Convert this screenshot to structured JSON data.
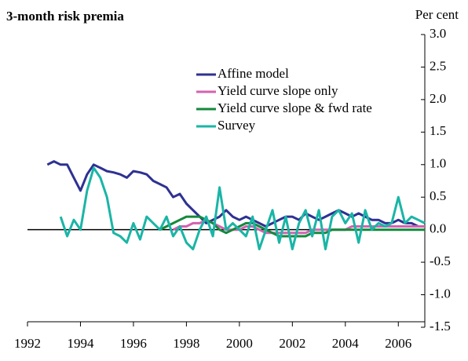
{
  "chart_data": {
    "type": "line",
    "title": "3-month risk premia",
    "y_unit_label": "Per cent",
    "x": [
      1992.75,
      1993,
      1993.25,
      1993.5,
      1993.75,
      1994,
      1994.25,
      1994.5,
      1994.75,
      1995,
      1995.25,
      1995.5,
      1995.75,
      1996,
      1996.25,
      1996.5,
      1996.75,
      1997,
      1997.25,
      1997.5,
      1997.75,
      1998,
      1998.25,
      1998.5,
      1998.75,
      1999,
      1999.25,
      1999.5,
      1999.75,
      2000,
      2000.25,
      2000.5,
      2000.75,
      2001,
      2001.25,
      2001.5,
      2001.75,
      2002,
      2002.25,
      2002.5,
      2002.75,
      2003,
      2003.25,
      2003.5,
      2003.75,
      2004,
      2004.25,
      2004.5,
      2004.75,
      2005,
      2005.25,
      2005.5,
      2005.75,
      2006,
      2006.25,
      2006.5,
      2006.75,
      2007
    ],
    "series": [
      {
        "name": "Affine model",
        "color": "#2e3192",
        "values": [
          1.0,
          1.05,
          1.0,
          1.0,
          0.8,
          0.6,
          0.85,
          1.0,
          0.95,
          0.9,
          0.88,
          0.85,
          0.8,
          0.9,
          0.88,
          0.85,
          0.75,
          0.7,
          0.65,
          0.5,
          0.55,
          0.4,
          0.3,
          0.2,
          0.1,
          0.15,
          0.2,
          0.3,
          0.2,
          0.15,
          0.2,
          0.15,
          0.1,
          0.05,
          0.1,
          0.15,
          0.2,
          0.2,
          0.15,
          0.25,
          0.2,
          0.15,
          0.2,
          0.25,
          0.3,
          0.25,
          0.2,
          0.25,
          0.2,
          0.15,
          0.15,
          0.1,
          0.1,
          0.15,
          0.1,
          0.1,
          0.05,
          0.05
        ]
      },
      {
        "name": "Yield curve slope only",
        "color": "#d462b0",
        "values": [
          null,
          null,
          null,
          null,
          null,
          null,
          null,
          null,
          null,
          null,
          null,
          null,
          null,
          null,
          null,
          null,
          null,
          null,
          null,
          0.0,
          0.05,
          0.05,
          0.1,
          0.1,
          0.15,
          0.1,
          0.05,
          0.0,
          0.0,
          0.0,
          0.05,
          0.05,
          0.0,
          -0.05,
          -0.05,
          -0.05,
          -0.05,
          -0.05,
          -0.05,
          -0.05,
          0.0,
          0.0,
          0.0,
          0.0,
          0.0,
          0.0,
          0.05,
          0.05,
          0.05,
          0.05,
          0.05,
          0.05,
          0.05,
          0.05,
          0.05,
          0.05,
          0.05,
          0.05
        ]
      },
      {
        "name": "Yield curve slope & fwd rate",
        "color": "#138a3c",
        "values": [
          null,
          null,
          null,
          null,
          null,
          null,
          null,
          null,
          null,
          null,
          null,
          null,
          null,
          null,
          null,
          null,
          null,
          0.0,
          0.05,
          0.1,
          0.15,
          0.2,
          0.2,
          0.2,
          0.15,
          0.1,
          0.0,
          -0.05,
          0.0,
          0.05,
          0.1,
          0.1,
          0.05,
          0.0,
          -0.05,
          -0.1,
          -0.1,
          -0.1,
          -0.1,
          -0.1,
          -0.05,
          -0.05,
          -0.05,
          0.0,
          0.0,
          0.0,
          0.0,
          0.0,
          0.0,
          0.0,
          0.0,
          0.0,
          0.0,
          0.0,
          0.0,
          0.0,
          0.0,
          0.0
        ]
      },
      {
        "name": "Survey",
        "color": "#1ab5a6",
        "values": [
          null,
          null,
          0.2,
          -0.1,
          0.15,
          0.0,
          0.6,
          0.95,
          0.8,
          0.5,
          -0.05,
          -0.1,
          -0.2,
          0.1,
          -0.15,
          0.2,
          0.1,
          0.0,
          0.2,
          -0.1,
          0.05,
          -0.2,
          -0.3,
          0.0,
          0.2,
          -0.1,
          0.65,
          0.0,
          0.1,
          0.0,
          -0.1,
          0.2,
          -0.3,
          0.0,
          0.3,
          -0.2,
          0.2,
          -0.3,
          0.1,
          0.3,
          -0.1,
          0.3,
          -0.3,
          0.2,
          0.3,
          0.1,
          0.25,
          -0.2,
          0.3,
          0.0,
          0.1,
          0.05,
          0.1,
          0.5,
          0.1,
          0.2,
          0.15,
          0.1
        ]
      }
    ],
    "xlim": [
      1992,
      2007
    ],
    "xticks": [
      1992,
      1994,
      1996,
      1998,
      2000,
      2002,
      2004,
      2006
    ],
    "ylim": [
      -1.5,
      3.0
    ],
    "yticks": [
      {
        "value": 3,
        "label": "3.0"
      },
      2.5,
      {
        "value": 2,
        "label": "2.0"
      },
      1.5,
      {
        "value": 1,
        "label": "1.0"
      },
      0.5,
      {
        "value": 0,
        "label": "0.0"
      },
      -0.5,
      {
        "value": -1,
        "label": "-1.0"
      },
      -1.5
    ]
  }
}
